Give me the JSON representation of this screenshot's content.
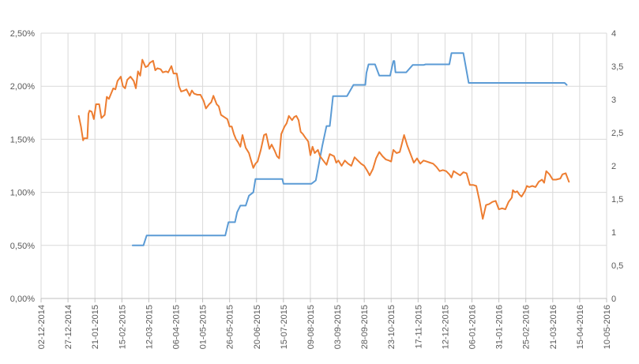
{
  "chart_data": {
    "type": "line",
    "grid": true,
    "legend": "none",
    "x_ticks": [
      "02-12-2014",
      "27-12-2014",
      "21-01-2015",
      "15-02-2015",
      "12-03-2015",
      "06-04-2015",
      "01-05-2015",
      "26-05-2015",
      "20-06-2015",
      "15-07-2015",
      "09-08-2015",
      "03-09-2015",
      "28-09-2015",
      "23-10-2015",
      "17-11-2015",
      "12-12-2015",
      "06-01-2016",
      "31-01-2016",
      "25-02-2016",
      "21-03-2016",
      "15-04-2016",
      "10-05-2016"
    ],
    "xlim": [
      "02-12-2014",
      "10-05-2016"
    ],
    "y_left": {
      "ticks": [
        "0,00%",
        "0,50%",
        "1,00%",
        "1,50%",
        "2,00%",
        "2,50%"
      ],
      "ylim": [
        0,
        2.5
      ],
      "unit": "%"
    },
    "y_right": {
      "ticks": [
        "0",
        "0,5",
        "1",
        "1,5",
        "2",
        "2,5",
        "3",
        "3,5",
        "4"
      ],
      "ylim": [
        0,
        4
      ]
    },
    "series": [
      {
        "axis": "left",
        "color": "#ED7D31",
        "points": [
          [
            "2015-01-06",
            1.72
          ],
          [
            "2015-01-08",
            1.62
          ],
          [
            "2015-01-10",
            1.49
          ],
          [
            "2015-01-11",
            1.51
          ],
          [
            "2015-01-14",
            1.51
          ],
          [
            "2015-01-15",
            1.74
          ],
          [
            "2015-01-16",
            1.77
          ],
          [
            "2015-01-18",
            1.76
          ],
          [
            "2015-01-20",
            1.69
          ],
          [
            "2015-01-22",
            1.83
          ],
          [
            "2015-01-25",
            1.83
          ],
          [
            "2015-01-27",
            1.7
          ],
          [
            "2015-01-30",
            1.73
          ],
          [
            "2015-02-01",
            1.9
          ],
          [
            "2015-02-03",
            1.88
          ],
          [
            "2015-02-05",
            1.93
          ],
          [
            "2015-02-07",
            1.98
          ],
          [
            "2015-02-09",
            1.97
          ],
          [
            "2015-02-11",
            2.05
          ],
          [
            "2015-02-14",
            2.09
          ],
          [
            "2015-02-16",
            2.0
          ],
          [
            "2015-02-18",
            1.98
          ],
          [
            "2015-02-20",
            2.06
          ],
          [
            "2015-02-23",
            2.09
          ],
          [
            "2015-02-26",
            2.05
          ],
          [
            "2015-02-28",
            1.98
          ],
          [
            "2015-03-02",
            2.14
          ],
          [
            "2015-03-04",
            2.1
          ],
          [
            "2015-03-06",
            2.25
          ],
          [
            "2015-03-09",
            2.18
          ],
          [
            "2015-03-11",
            2.19
          ],
          [
            "2015-03-13",
            2.22
          ],
          [
            "2015-03-16",
            2.24
          ],
          [
            "2015-03-18",
            2.15
          ],
          [
            "2015-03-20",
            2.17
          ],
          [
            "2015-03-23",
            2.16
          ],
          [
            "2015-03-25",
            2.13
          ],
          [
            "2015-03-28",
            2.14
          ],
          [
            "2015-03-30",
            2.13
          ],
          [
            "2015-04-02",
            2.19
          ],
          [
            "2015-04-04",
            2.12
          ],
          [
            "2015-04-07",
            2.12
          ],
          [
            "2015-04-09",
            2.0
          ],
          [
            "2015-04-11",
            1.95
          ],
          [
            "2015-04-14",
            1.96
          ],
          [
            "2015-04-16",
            1.97
          ],
          [
            "2015-04-19",
            1.91
          ],
          [
            "2015-04-21",
            1.96
          ],
          [
            "2015-04-23",
            1.93
          ],
          [
            "2015-04-26",
            1.92
          ],
          [
            "2015-04-29",
            1.92
          ],
          [
            "2015-05-02",
            1.86
          ],
          [
            "2015-05-04",
            1.79
          ],
          [
            "2015-05-07",
            1.83
          ],
          [
            "2015-05-09",
            1.85
          ],
          [
            "2015-05-11",
            1.91
          ],
          [
            "2015-05-14",
            1.83
          ],
          [
            "2015-05-16",
            1.81
          ],
          [
            "2015-05-18",
            1.73
          ],
          [
            "2015-05-21",
            1.71
          ],
          [
            "2015-05-24",
            1.69
          ],
          [
            "2015-05-26",
            1.62
          ],
          [
            "2015-05-28",
            1.62
          ],
          [
            "2015-05-30",
            1.55
          ],
          [
            "2015-06-01",
            1.5
          ],
          [
            "2015-06-03",
            1.47
          ],
          [
            "2015-06-05",
            1.43
          ],
          [
            "2015-06-07",
            1.54
          ],
          [
            "2015-06-10",
            1.42
          ],
          [
            "2015-06-13",
            1.37
          ],
          [
            "2015-06-15",
            1.3
          ],
          [
            "2015-06-17",
            1.23
          ],
          [
            "2015-06-19",
            1.27
          ],
          [
            "2015-06-21",
            1.29
          ],
          [
            "2015-06-24",
            1.4
          ],
          [
            "2015-06-27",
            1.54
          ],
          [
            "2015-06-29",
            1.55
          ],
          [
            "2015-07-02",
            1.41
          ],
          [
            "2015-07-04",
            1.45
          ],
          [
            "2015-07-07",
            1.39
          ],
          [
            "2015-07-09",
            1.34
          ],
          [
            "2015-07-11",
            1.32
          ],
          [
            "2015-07-13",
            1.55
          ],
          [
            "2015-07-16",
            1.62
          ],
          [
            "2015-07-18",
            1.65
          ],
          [
            "2015-07-20",
            1.72
          ],
          [
            "2015-07-23",
            1.68
          ],
          [
            "2015-07-25",
            1.71
          ],
          [
            "2015-07-27",
            1.72
          ],
          [
            "2015-07-29",
            1.68
          ],
          [
            "2015-07-31",
            1.57
          ],
          [
            "2015-08-02",
            1.55
          ],
          [
            "2015-08-04",
            1.52
          ],
          [
            "2015-08-07",
            1.48
          ],
          [
            "2015-08-09",
            1.35
          ],
          [
            "2015-08-11",
            1.43
          ],
          [
            "2015-08-13",
            1.37
          ],
          [
            "2015-08-16",
            1.4
          ],
          [
            "2015-08-18",
            1.34
          ],
          [
            "2015-08-21",
            1.3
          ],
          [
            "2015-08-24",
            1.26
          ],
          [
            "2015-08-27",
            1.36
          ],
          [
            "2015-08-31",
            1.34
          ],
          [
            "2015-09-02",
            1.28
          ],
          [
            "2015-09-04",
            1.3
          ],
          [
            "2015-09-07",
            1.25
          ],
          [
            "2015-09-10",
            1.3
          ],
          [
            "2015-09-13",
            1.27
          ],
          [
            "2015-09-16",
            1.25
          ],
          [
            "2015-09-19",
            1.33
          ],
          [
            "2015-09-22",
            1.3
          ],
          [
            "2015-09-25",
            1.27
          ],
          [
            "2015-09-28",
            1.25
          ],
          [
            "2015-10-01",
            1.2
          ],
          [
            "2015-10-03",
            1.16
          ],
          [
            "2015-10-06",
            1.22
          ],
          [
            "2015-10-09",
            1.32
          ],
          [
            "2015-10-12",
            1.38
          ],
          [
            "2015-10-15",
            1.34
          ],
          [
            "2015-10-18",
            1.31
          ],
          [
            "2015-10-21",
            1.3
          ],
          [
            "2015-10-23",
            1.29
          ],
          [
            "2015-10-25",
            1.4
          ],
          [
            "2015-10-28",
            1.37
          ],
          [
            "2015-10-31",
            1.38
          ],
          [
            "2015-11-02",
            1.46
          ],
          [
            "2015-11-04",
            1.54
          ],
          [
            "2015-11-07",
            1.44
          ],
          [
            "2015-11-10",
            1.36
          ],
          [
            "2015-11-13",
            1.28
          ],
          [
            "2015-11-16",
            1.32
          ],
          [
            "2015-11-19",
            1.27
          ],
          [
            "2015-11-22",
            1.3
          ],
          [
            "2015-11-25",
            1.29
          ],
          [
            "2015-11-28",
            1.28
          ],
          [
            "2015-12-01",
            1.27
          ],
          [
            "2015-12-04",
            1.24
          ],
          [
            "2015-12-07",
            1.2
          ],
          [
            "2015-12-10",
            1.21
          ],
          [
            "2015-12-13",
            1.2
          ],
          [
            "2015-12-16",
            1.17
          ],
          [
            "2015-12-18",
            1.14
          ],
          [
            "2015-12-20",
            1.2
          ],
          [
            "2015-12-23",
            1.18
          ],
          [
            "2015-12-26",
            1.16
          ],
          [
            "2015-12-29",
            1.19
          ],
          [
            "2016-01-01",
            1.18
          ],
          [
            "2016-01-04",
            1.07
          ],
          [
            "2016-01-07",
            1.07
          ],
          [
            "2016-01-10",
            1.06
          ],
          [
            "2016-01-13",
            0.92
          ],
          [
            "2016-01-16",
            0.75
          ],
          [
            "2016-01-19",
            0.88
          ],
          [
            "2016-01-22",
            0.89
          ],
          [
            "2016-01-25",
            0.91
          ],
          [
            "2016-01-28",
            0.92
          ],
          [
            "2016-01-31",
            0.84
          ],
          [
            "2016-02-03",
            0.85
          ],
          [
            "2016-02-06",
            0.84
          ],
          [
            "2016-02-09",
            0.91
          ],
          [
            "2016-02-12",
            0.95
          ],
          [
            "2016-02-13",
            1.02
          ],
          [
            "2016-02-15",
            1.0
          ],
          [
            "2016-02-17",
            1.01
          ],
          [
            "2016-02-19",
            0.98
          ],
          [
            "2016-02-21",
            0.96
          ],
          [
            "2016-02-24",
            1.01
          ],
          [
            "2016-02-26",
            1.06
          ],
          [
            "2016-02-28",
            1.05
          ],
          [
            "2016-03-02",
            1.06
          ],
          [
            "2016-03-05",
            1.05
          ],
          [
            "2016-03-08",
            1.1
          ],
          [
            "2016-03-11",
            1.12
          ],
          [
            "2016-03-13",
            1.09
          ],
          [
            "2016-03-15",
            1.2
          ],
          [
            "2016-03-18",
            1.17
          ],
          [
            "2016-03-21",
            1.12
          ],
          [
            "2016-03-24",
            1.12
          ],
          [
            "2016-03-28",
            1.13
          ],
          [
            "2016-03-30",
            1.17
          ],
          [
            "2016-04-02",
            1.18
          ],
          [
            "2016-04-05",
            1.1
          ]
        ]
      },
      {
        "axis": "right",
        "color": "#5B9BD5",
        "points": [
          [
            "2015-02-25",
            0.8
          ],
          [
            "2015-03-07",
            0.8
          ],
          [
            "2015-03-10",
            0.95
          ],
          [
            "2015-05-22",
            0.95
          ],
          [
            "2015-05-25",
            1.15
          ],
          [
            "2015-05-31",
            1.15
          ],
          [
            "2015-06-02",
            1.3
          ],
          [
            "2015-06-05",
            1.4
          ],
          [
            "2015-06-10",
            1.4
          ],
          [
            "2015-06-13",
            1.55
          ],
          [
            "2015-06-17",
            1.6
          ],
          [
            "2015-06-19",
            1.8
          ],
          [
            "2015-07-14",
            1.8
          ],
          [
            "2015-07-15",
            1.73
          ],
          [
            "2015-08-10",
            1.73
          ],
          [
            "2015-08-14",
            1.78
          ],
          [
            "2015-08-20",
            2.3
          ],
          [
            "2015-08-24",
            2.6
          ],
          [
            "2015-08-27",
            2.6
          ],
          [
            "2015-08-28",
            2.75
          ],
          [
            "2015-08-30",
            3.05
          ],
          [
            "2015-09-12",
            3.05
          ],
          [
            "2015-09-18",
            3.22
          ],
          [
            "2015-09-29",
            3.22
          ],
          [
            "2015-09-30",
            3.4
          ],
          [
            "2015-10-02",
            3.53
          ],
          [
            "2015-10-08",
            3.53
          ],
          [
            "2015-10-12",
            3.36
          ],
          [
            "2015-10-22",
            3.36
          ],
          [
            "2015-10-25",
            3.58
          ],
          [
            "2015-10-26",
            3.58
          ],
          [
            "2015-10-27",
            3.41
          ],
          [
            "2015-11-06",
            3.41
          ],
          [
            "2015-11-12",
            3.52
          ],
          [
            "2015-11-22",
            3.52
          ],
          [
            "2015-11-24",
            3.53
          ],
          [
            "2015-12-16",
            3.53
          ],
          [
            "2015-12-18",
            3.7
          ],
          [
            "2015-12-29",
            3.7
          ],
          [
            "2016-01-03",
            3.25
          ],
          [
            "2016-04-01",
            3.25
          ],
          [
            "2016-04-03",
            3.22
          ]
        ]
      }
    ]
  }
}
